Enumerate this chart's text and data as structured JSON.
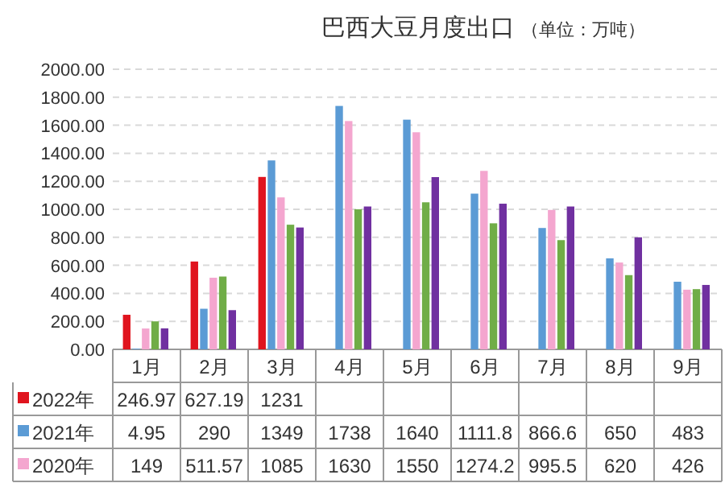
{
  "chart_data": {
    "type": "bar",
    "title": "巴西大豆月度出口",
    "subtitle": "（单位：万吨）",
    "categories": [
      "1月",
      "2月",
      "3月",
      "4月",
      "5月",
      "6月",
      "7月",
      "8月",
      "9月"
    ],
    "ylim": [
      0,
      2000
    ],
    "yticks": [
      {
        "value": 0,
        "label": "0.00"
      },
      {
        "value": 200,
        "label": "200.00"
      },
      {
        "value": 400,
        "label": "400.00"
      },
      {
        "value": 600,
        "label": "600.00"
      },
      {
        "value": 800,
        "label": "800.00"
      },
      {
        "value": 1000,
        "label": "1000.00"
      },
      {
        "value": 1200,
        "label": "1200.00"
      },
      {
        "value": 1400,
        "label": "1400.00"
      },
      {
        "value": 1600,
        "label": "1600.00"
      },
      {
        "value": 1800,
        "label": "1800.00"
      },
      {
        "value": 2000,
        "label": "2000.00"
      }
    ],
    "grid": "y",
    "legend": "bottom",
    "series": [
      {
        "name": "2022年",
        "color": "#e0141e",
        "values": [
          246.97,
          627.19,
          1231,
          null,
          null,
          null,
          null,
          null,
          null
        ],
        "value_labels": [
          "246.97",
          "627.19",
          "1231",
          null,
          null,
          null,
          null,
          null,
          null
        ]
      },
      {
        "name": "2021年",
        "color": "#5b9bd5",
        "values": [
          4.95,
          290,
          1349,
          1738,
          1640,
          1111.8,
          866.6,
          650,
          483
        ],
        "value_labels": [
          "4.95",
          "290",
          "1349",
          "1738",
          "1640",
          "1111.8",
          "866.6",
          "650",
          "483"
        ]
      },
      {
        "name": "2020年",
        "color": "#f4a6cf",
        "values": [
          149,
          511.57,
          1085,
          1630,
          1550,
          1274.2,
          995.5,
          620,
          426
        ],
        "value_labels": [
          "149",
          "511.57",
          "1085",
          "1630",
          "1550",
          "1274.2",
          "995.5",
          "620",
          "426"
        ]
      },
      {
        "color": "#70ad47",
        "values": [
          200,
          520,
          890,
          1000,
          1050,
          900,
          780,
          530,
          430
        ]
      },
      {
        "color": "#7030a0",
        "values": [
          150,
          280,
          870,
          1020,
          1230,
          1040,
          1020,
          800,
          460
        ]
      }
    ]
  }
}
